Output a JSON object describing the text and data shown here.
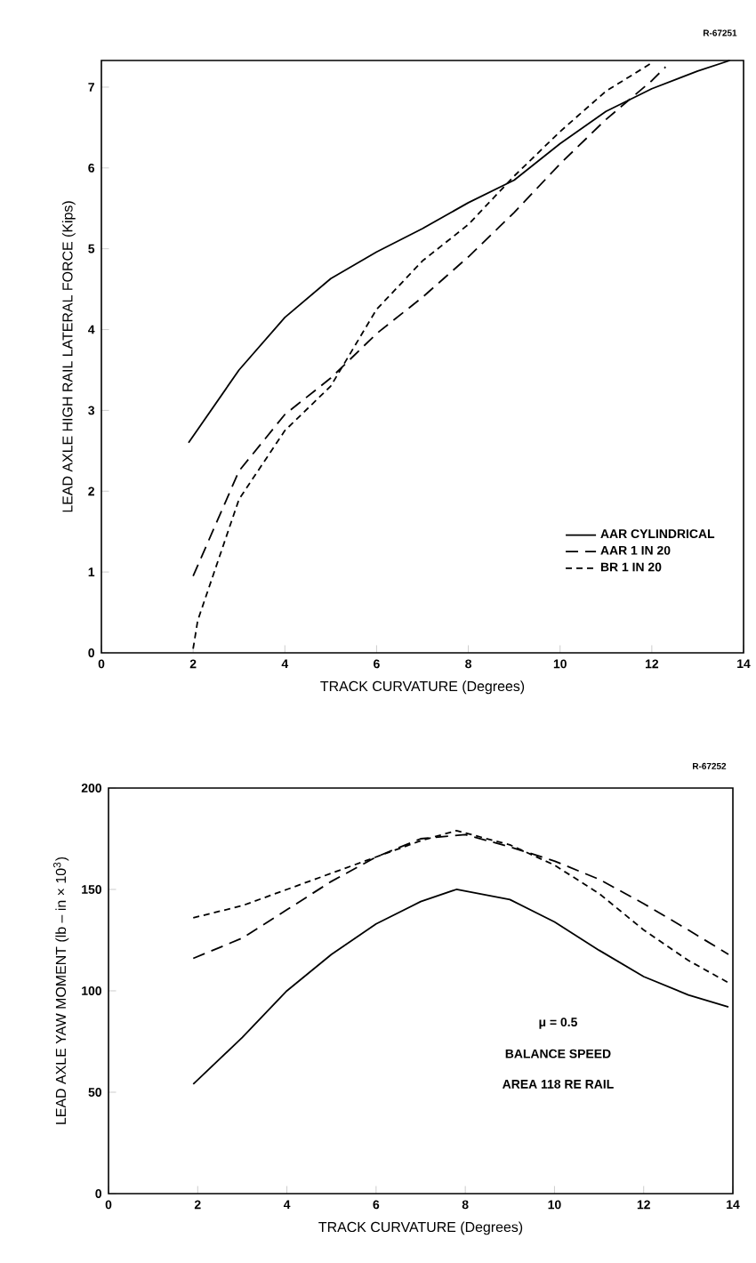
{
  "chart_data": [
    {
      "type": "line",
      "xlabel": "TRACK CURVATURE (Degrees)",
      "ylabel": "LEAD AXLE HIGH RAIL LATERAL FORCE (Kips)",
      "xlim": [
        0,
        14
      ],
      "ylim": [
        0,
        7.33
      ],
      "xticks": [
        0,
        2,
        4,
        6,
        8,
        10,
        12,
        14
      ],
      "yticks": [
        0,
        1,
        2,
        3,
        4,
        5,
        6,
        7
      ],
      "legend": "bottom right",
      "grid": false,
      "annotations": [
        "R-67251"
      ],
      "series": [
        {
          "name": "AAR CYLINDRICAL",
          "color": "#000000",
          "line_style": "solid",
          "x": [
            1.9,
            3,
            4,
            5,
            6,
            7,
            8,
            9,
            10,
            11,
            12,
            13,
            13.7
          ],
          "values": [
            2.6,
            3.5,
            4.15,
            4.63,
            4.96,
            5.25,
            5.57,
            5.85,
            6.3,
            6.7,
            6.98,
            7.2,
            7.33
          ]
        },
        {
          "name": "AAR 1 IN 20",
          "color": "#000000",
          "line_style": "dashed",
          "x": [
            2,
            3,
            4,
            5,
            6,
            7,
            8,
            9,
            10,
            11,
            12,
            12.3
          ],
          "values": [
            0.95,
            2.25,
            2.95,
            3.4,
            3.95,
            4.4,
            4.9,
            5.45,
            6.05,
            6.6,
            7.08,
            7.25
          ]
        },
        {
          "name": "BR 1 IN 20",
          "color": "#000000",
          "line_style": "dashed",
          "x": [
            2,
            2.1,
            3,
            4,
            5,
            6,
            7,
            8,
            9,
            10,
            11,
            12
          ],
          "values": [
            0.05,
            0.4,
            1.9,
            2.75,
            3.3,
            4.25,
            4.85,
            5.3,
            5.9,
            6.45,
            6.95,
            7.3
          ]
        }
      ]
    },
    {
      "type": "line",
      "xlabel": "TRACK CURVATURE (Degrees)",
      "ylabel": "LEAD AXLE YAW MOMENT (lb – in × 10$^{3}$)",
      "xlim": [
        0,
        14
      ],
      "ylim": [
        0,
        200
      ],
      "xticks": [
        0,
        2,
        4,
        6,
        8,
        10,
        12,
        14
      ],
      "yticks": [
        0,
        50,
        100,
        150,
        200
      ],
      "grid": false,
      "annotations": [
        "R-67252",
        "μ = 0.5",
        "BALANCE SPEED",
        "AREA 118 RE RAIL"
      ],
      "series": [
        {
          "color": "#000000",
          "line_style": "solid",
          "x": [
            1.9,
            3,
            4,
            5,
            6,
            7,
            7.8,
            9,
            10,
            11,
            12,
            13,
            13.9
          ],
          "values": [
            54,
            77,
            100,
            118,
            133,
            144,
            150,
            145,
            134,
            120,
            107,
            98,
            92
          ]
        },
        {
          "color": "#000000",
          "line_style": "dashed",
          "x": [
            1.9,
            3,
            4,
            5,
            6,
            7,
            8,
            9,
            10,
            11,
            12,
            13,
            13.9
          ],
          "values": [
            116,
            126,
            140,
            154,
            166,
            175,
            177,
            171,
            164,
            155,
            143,
            130,
            118
          ]
        },
        {
          "color": "#000000",
          "line_style": "dashed",
          "x": [
            1.9,
            3,
            4,
            5,
            6,
            7,
            7.8,
            9,
            10,
            11,
            12,
            13,
            13.9
          ],
          "values": [
            136,
            142,
            150,
            158,
            166,
            174,
            179,
            172,
            162,
            148,
            130,
            115,
            104
          ]
        }
      ]
    }
  ]
}
